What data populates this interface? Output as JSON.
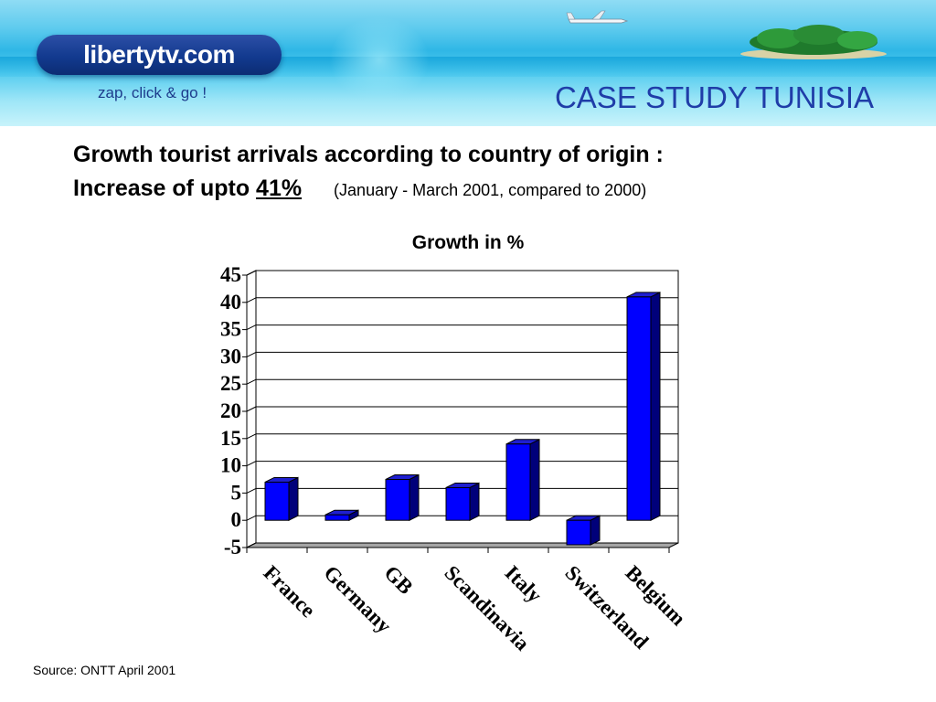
{
  "banner": {
    "logo_text": "libertytv.com",
    "tagline": "zap, click & go !",
    "title": "CASE STUDY TUNISIA"
  },
  "heading": {
    "line1": "Growth tourist arrivals according to country of origin :",
    "line2_prefix": "Increase of upto",
    "line2_value": "41%",
    "line2_note": "(January - March 2001, compared to 2000)"
  },
  "source": "Source: ONTT April 2001",
  "colors": {
    "bar_front": "#0000ff",
    "bar_side": "#00007a",
    "bar_top": "#1f1fd0",
    "floor": "#a6a6a6",
    "title_blue": "#1f3da8"
  },
  "chart_data": {
    "type": "bar",
    "title": "Growth in %",
    "categories": [
      "France",
      "Germany",
      "GB",
      "Scandinavia",
      "Italy",
      "Switzerland",
      "Belgium"
    ],
    "values": [
      7,
      1,
      7.5,
      6,
      14,
      -4.5,
      41
    ],
    "yticks": [
      "45",
      "40",
      "35",
      "30",
      "25",
      "20",
      "15",
      "10",
      "5",
      "0",
      "-5"
    ],
    "ylim": [
      -5,
      45
    ],
    "grid": true,
    "legend": "none",
    "style": "3d"
  }
}
